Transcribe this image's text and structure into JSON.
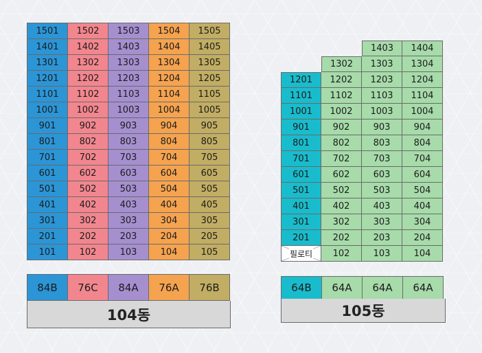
{
  "buildings": [
    {
      "id": "104",
      "label": "104동",
      "column_colors": [
        "#2b95d6",
        "#f2868e",
        "#a58fcf",
        "#f5a34f",
        "#c1ad63"
      ],
      "rows": [
        [
          "1501",
          "1502",
          "1503",
          "1504",
          "1505"
        ],
        [
          "1401",
          "1402",
          "1403",
          "1404",
          "1405"
        ],
        [
          "1301",
          "1302",
          "1303",
          "1304",
          "1305"
        ],
        [
          "1201",
          "1202",
          "1203",
          "1204",
          "1205"
        ],
        [
          "1101",
          "1102",
          "1103",
          "1104",
          "1105"
        ],
        [
          "1001",
          "1002",
          "1003",
          "1004",
          "1005"
        ],
        [
          "901",
          "902",
          "903",
          "904",
          "905"
        ],
        [
          "801",
          "802",
          "803",
          "804",
          "805"
        ],
        [
          "701",
          "702",
          "703",
          "704",
          "705"
        ],
        [
          "601",
          "602",
          "603",
          "604",
          "605"
        ],
        [
          "501",
          "502",
          "503",
          "504",
          "505"
        ],
        [
          "401",
          "402",
          "403",
          "404",
          "405"
        ],
        [
          "301",
          "302",
          "303",
          "304",
          "305"
        ],
        [
          "201",
          "202",
          "203",
          "204",
          "205"
        ],
        [
          "101",
          "102",
          "103",
          "104",
          "105"
        ]
      ],
      "types": [
        "84B",
        "76C",
        "84A",
        "76A",
        "76B"
      ]
    },
    {
      "id": "105",
      "label": "105동",
      "column_colors": [
        "#19bccc",
        "#a7dbaa",
        "#a7dbaa",
        "#a7dbaa"
      ],
      "piloti_label": "필로티",
      "rows": [
        [
          null,
          null,
          "1403",
          "1404"
        ],
        [
          null,
          "1302",
          "1303",
          "1304"
        ],
        [
          "1201",
          "1202",
          "1203",
          "1204"
        ],
        [
          "1101",
          "1102",
          "1103",
          "1104"
        ],
        [
          "1001",
          "1002",
          "1003",
          "1004"
        ],
        [
          "901",
          "902",
          "903",
          "904"
        ],
        [
          "801",
          "802",
          "803",
          "804"
        ],
        [
          "701",
          "702",
          "703",
          "704"
        ],
        [
          "601",
          "602",
          "603",
          "604"
        ],
        [
          "501",
          "502",
          "503",
          "504"
        ],
        [
          "401",
          "402",
          "403",
          "404"
        ],
        [
          "301",
          "302",
          "303",
          "304"
        ],
        [
          "201",
          "202",
          "203",
          "204"
        ],
        [
          "piloti",
          "102",
          "103",
          "104"
        ]
      ],
      "types": [
        "64B",
        "64A",
        "64A",
        "64A"
      ]
    }
  ]
}
